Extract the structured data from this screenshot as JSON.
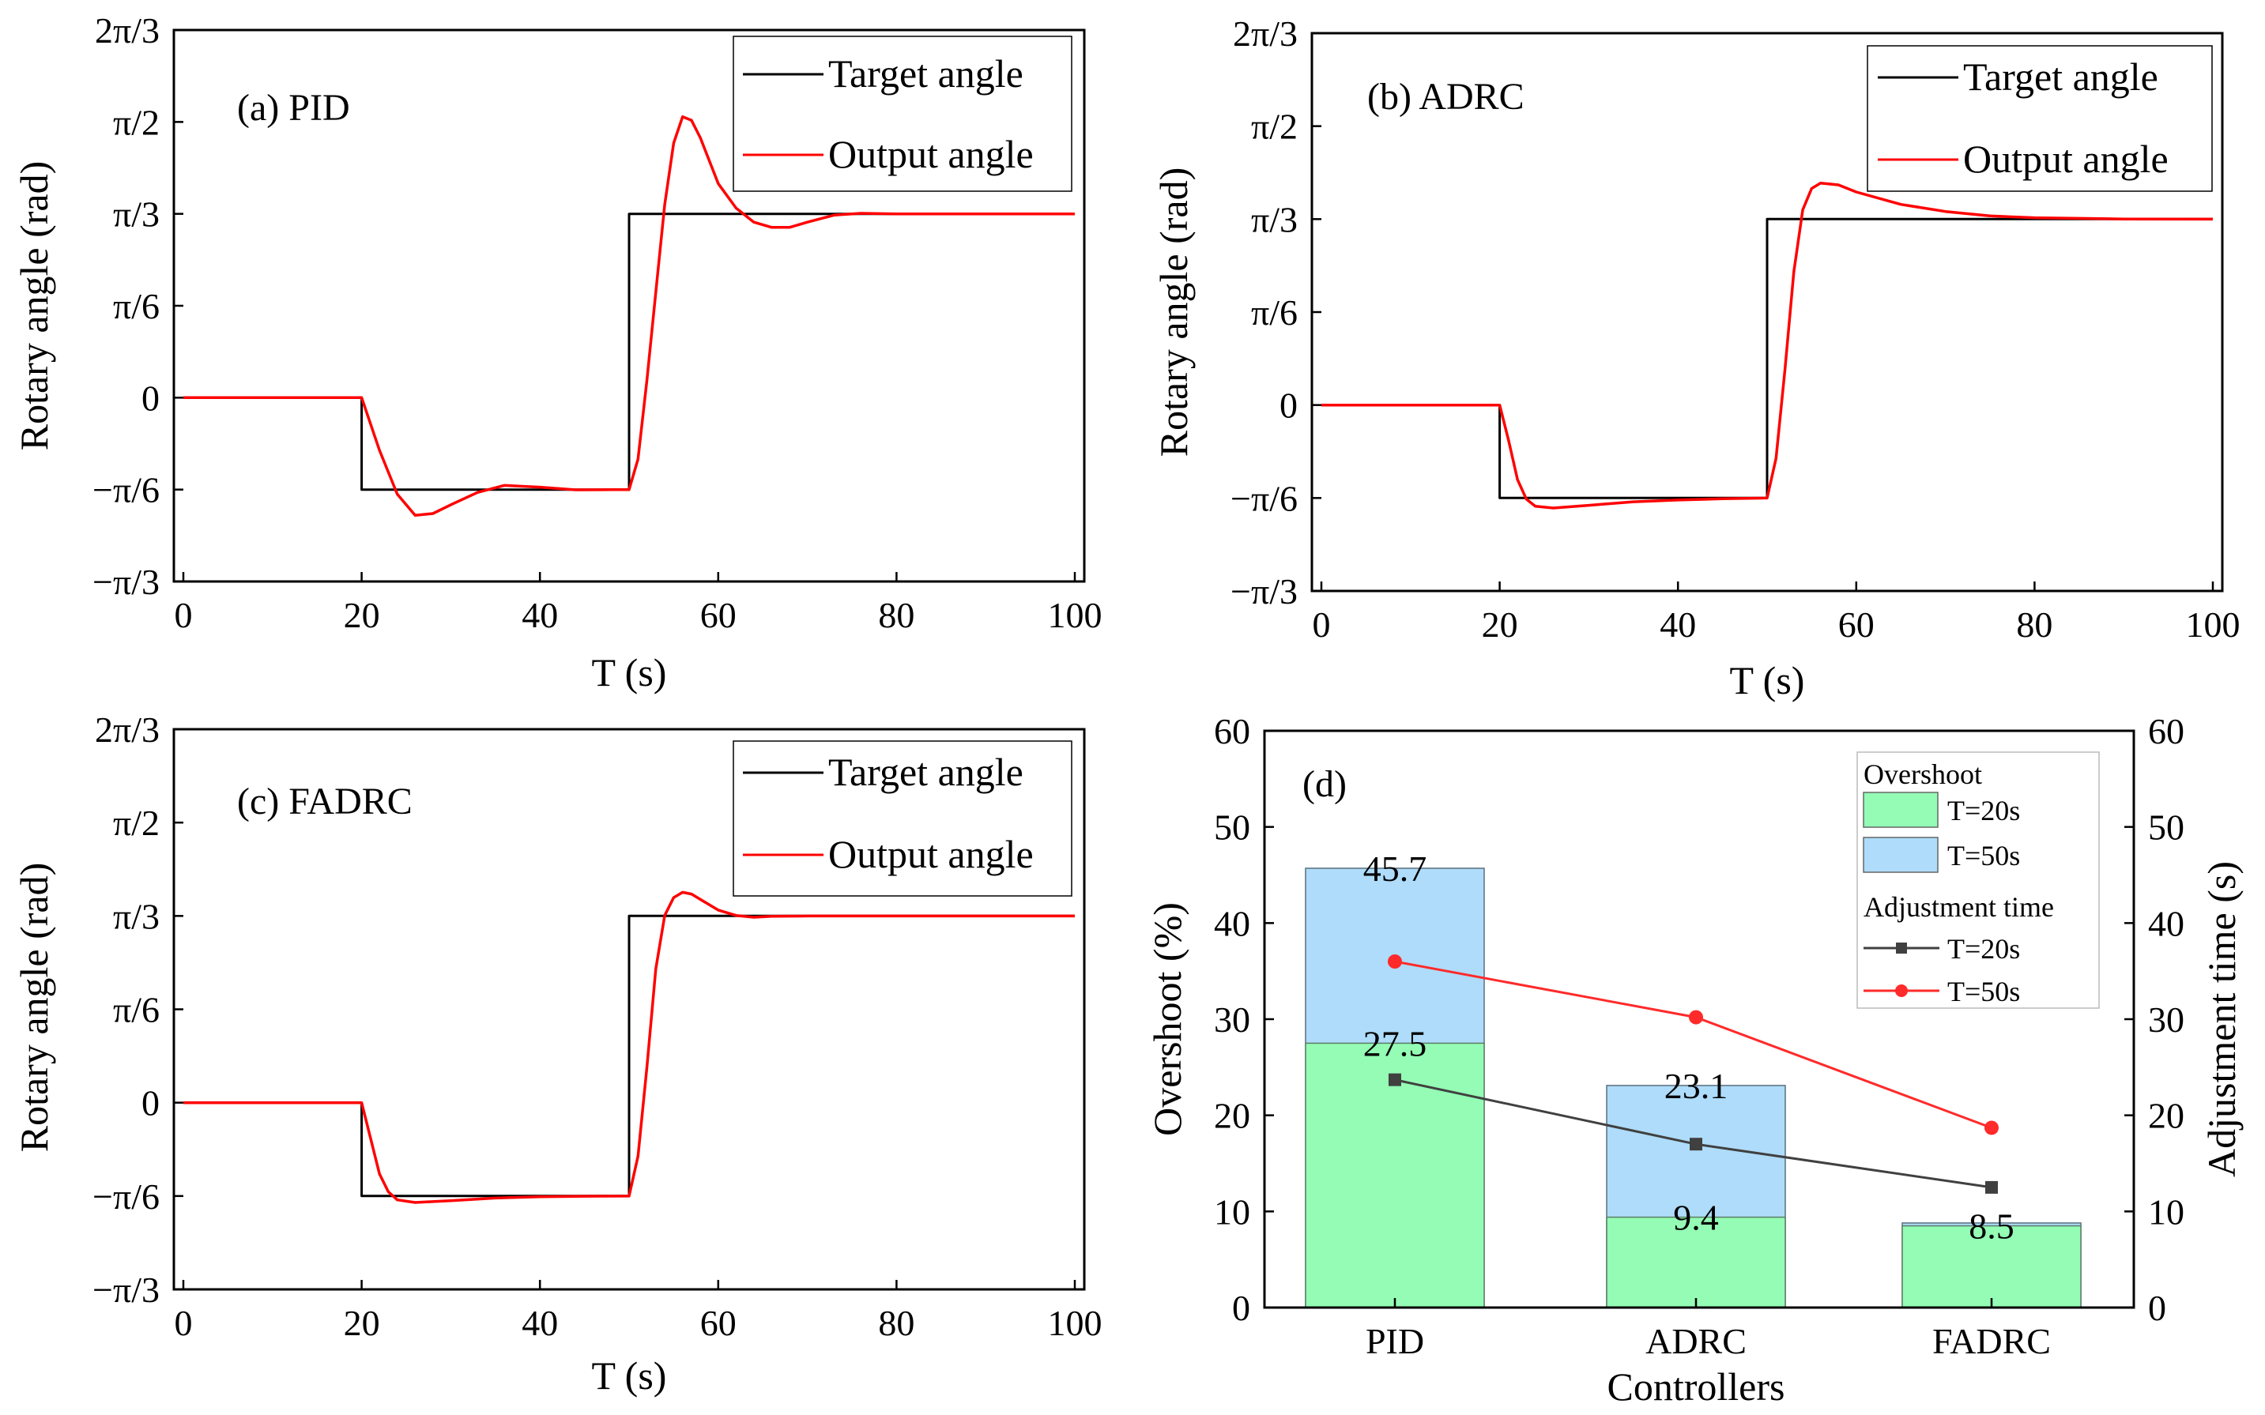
{
  "chart_data": [
    {
      "type": "line",
      "panel_label": "(a) PID",
      "xlabel": "T (s)",
      "ylabel": "Rotary angle (rad)",
      "xlim": [
        0,
        100
      ],
      "ylim": [
        -1.0472,
        2.0944
      ],
      "x_ticks": [
        "0",
        "20",
        "40",
        "60",
        "80",
        "100"
      ],
      "y_ticks": [
        "−π/3",
        "−π/6",
        "0",
        "π/6",
        "π/3",
        "π/2",
        "2π/3"
      ],
      "legend": [
        "Target angle",
        "Output angle"
      ],
      "series": [
        {
          "name": "Target angle",
          "color": "#000000",
          "x": [
            0,
            20,
            20,
            50,
            50,
            100
          ],
          "y": [
            0,
            0,
            -0.5236,
            -0.5236,
            1.0472,
            1.0472
          ]
        },
        {
          "name": "Output angle",
          "color": "#ff0000",
          "x": [
            0,
            20,
            22,
            24,
            26,
            28,
            30,
            33,
            36,
            40,
            44,
            48,
            50,
            51,
            52,
            53,
            54,
            55,
            56,
            57,
            58,
            60,
            62,
            64,
            66,
            68,
            70,
            73,
            76,
            80,
            90,
            100
          ],
          "y": [
            0,
            0,
            -0.3,
            -0.55,
            -0.67,
            -0.66,
            -0.61,
            -0.54,
            -0.5,
            -0.51,
            -0.525,
            -0.524,
            -0.524,
            -0.35,
            0.1,
            0.6,
            1.1,
            1.45,
            1.6,
            1.58,
            1.48,
            1.22,
            1.08,
            1.0,
            0.97,
            0.97,
            1.0,
            1.04,
            1.05,
            1.047,
            1.047,
            1.047
          ]
        }
      ]
    },
    {
      "type": "line",
      "panel_label": "(b) ADRC",
      "xlabel": "T (s)",
      "ylabel": "Rotary angle (rad)",
      "xlim": [
        0,
        100
      ],
      "ylim": [
        -1.0472,
        2.0944
      ],
      "x_ticks": [
        "0",
        "20",
        "40",
        "60",
        "80",
        "100"
      ],
      "y_ticks": [
        "−π/3",
        "−π/6",
        "0",
        "π/6",
        "π/3",
        "π/2",
        "2π/3"
      ],
      "legend": [
        "Target angle",
        "Output angle"
      ],
      "series": [
        {
          "name": "Target angle",
          "color": "#000000",
          "x": [
            0,
            20,
            20,
            50,
            50,
            100
          ],
          "y": [
            0,
            0,
            -0.5236,
            -0.5236,
            1.0472,
            1.0472
          ]
        },
        {
          "name": "Output angle",
          "color": "#ff0000",
          "x": [
            0,
            20,
            21,
            22,
            23,
            24,
            26,
            30,
            35,
            40,
            45,
            50,
            51,
            52,
            53,
            54,
            55,
            56,
            58,
            60,
            65,
            70,
            75,
            80,
            90,
            100
          ],
          "y": [
            0,
            0,
            -0.2,
            -0.42,
            -0.53,
            -0.57,
            -0.58,
            -0.565,
            -0.545,
            -0.535,
            -0.528,
            -0.524,
            -0.3,
            0.2,
            0.75,
            1.1,
            1.22,
            1.25,
            1.24,
            1.2,
            1.13,
            1.09,
            1.065,
            1.055,
            1.048,
            1.047
          ]
        }
      ]
    },
    {
      "type": "line",
      "panel_label": "(c) FADRC",
      "xlabel": "T (s)",
      "ylabel": "Rotary angle (rad)",
      "xlim": [
        0,
        100
      ],
      "ylim": [
        -1.0472,
        2.0944
      ],
      "x_ticks": [
        "0",
        "20",
        "40",
        "60",
        "80",
        "100"
      ],
      "y_ticks": [
        "−π/3",
        "−π/6",
        "0",
        "π/6",
        "π/3",
        "π/2",
        "2π/3"
      ],
      "legend": [
        "Target angle",
        "Output angle"
      ],
      "series": [
        {
          "name": "Target angle",
          "color": "#000000",
          "x": [
            0,
            20,
            20,
            50,
            50,
            100
          ],
          "y": [
            0,
            0,
            -0.5236,
            -0.5236,
            1.0472,
            1.0472
          ]
        },
        {
          "name": "Output angle",
          "color": "#ff0000",
          "x": [
            0,
            20,
            21,
            22,
            23,
            24,
            26,
            30,
            35,
            40,
            45,
            50,
            51,
            52,
            53,
            54,
            55,
            56,
            57,
            58,
            60,
            62,
            64,
            66,
            70,
            80,
            100
          ],
          "y": [
            0,
            0,
            -0.2,
            -0.4,
            -0.5,
            -0.545,
            -0.56,
            -0.55,
            -0.535,
            -0.528,
            -0.525,
            -0.524,
            -0.3,
            0.2,
            0.75,
            1.05,
            1.15,
            1.18,
            1.17,
            1.14,
            1.08,
            1.05,
            1.04,
            1.045,
            1.047,
            1.047,
            1.047
          ]
        }
      ]
    },
    {
      "type": "bar",
      "panel_label": "(d)",
      "xlabel": "Controllers",
      "ylabel": "Overshoot (%)",
      "ylabel_right": "Adjustment time (s)",
      "categories": [
        "PID",
        "ADRC",
        "FADRC"
      ],
      "ylim": [
        0,
        60
      ],
      "ylim_right": [
        0,
        60
      ],
      "y_ticks": [
        "0",
        "10",
        "20",
        "30",
        "40",
        "50",
        "60"
      ],
      "legend_bar_title": "Overshoot",
      "legend_line_title": "Adjustment time",
      "bar_series": [
        {
          "name": "T=20s",
          "color": "#94fcb4",
          "values": [
            27.5,
            9.4,
            8.5
          ],
          "labels": [
            "27.5",
            "9.4",
            "8.5"
          ]
        },
        {
          "name": "T=50s",
          "color": "#aedcfa",
          "values": [
            45.7,
            23.1,
            8.8
          ],
          "labels": [
            "45.7",
            "23.1",
            ""
          ]
        }
      ],
      "line_series": [
        {
          "name": "T=20s",
          "color": "#404040",
          "marker": "square",
          "values": [
            23.7,
            17.0,
            12.5
          ]
        },
        {
          "name": "T=50s",
          "color": "#ff2a2a",
          "marker": "circle",
          "values": [
            36.0,
            30.2,
            18.7
          ]
        }
      ]
    }
  ]
}
